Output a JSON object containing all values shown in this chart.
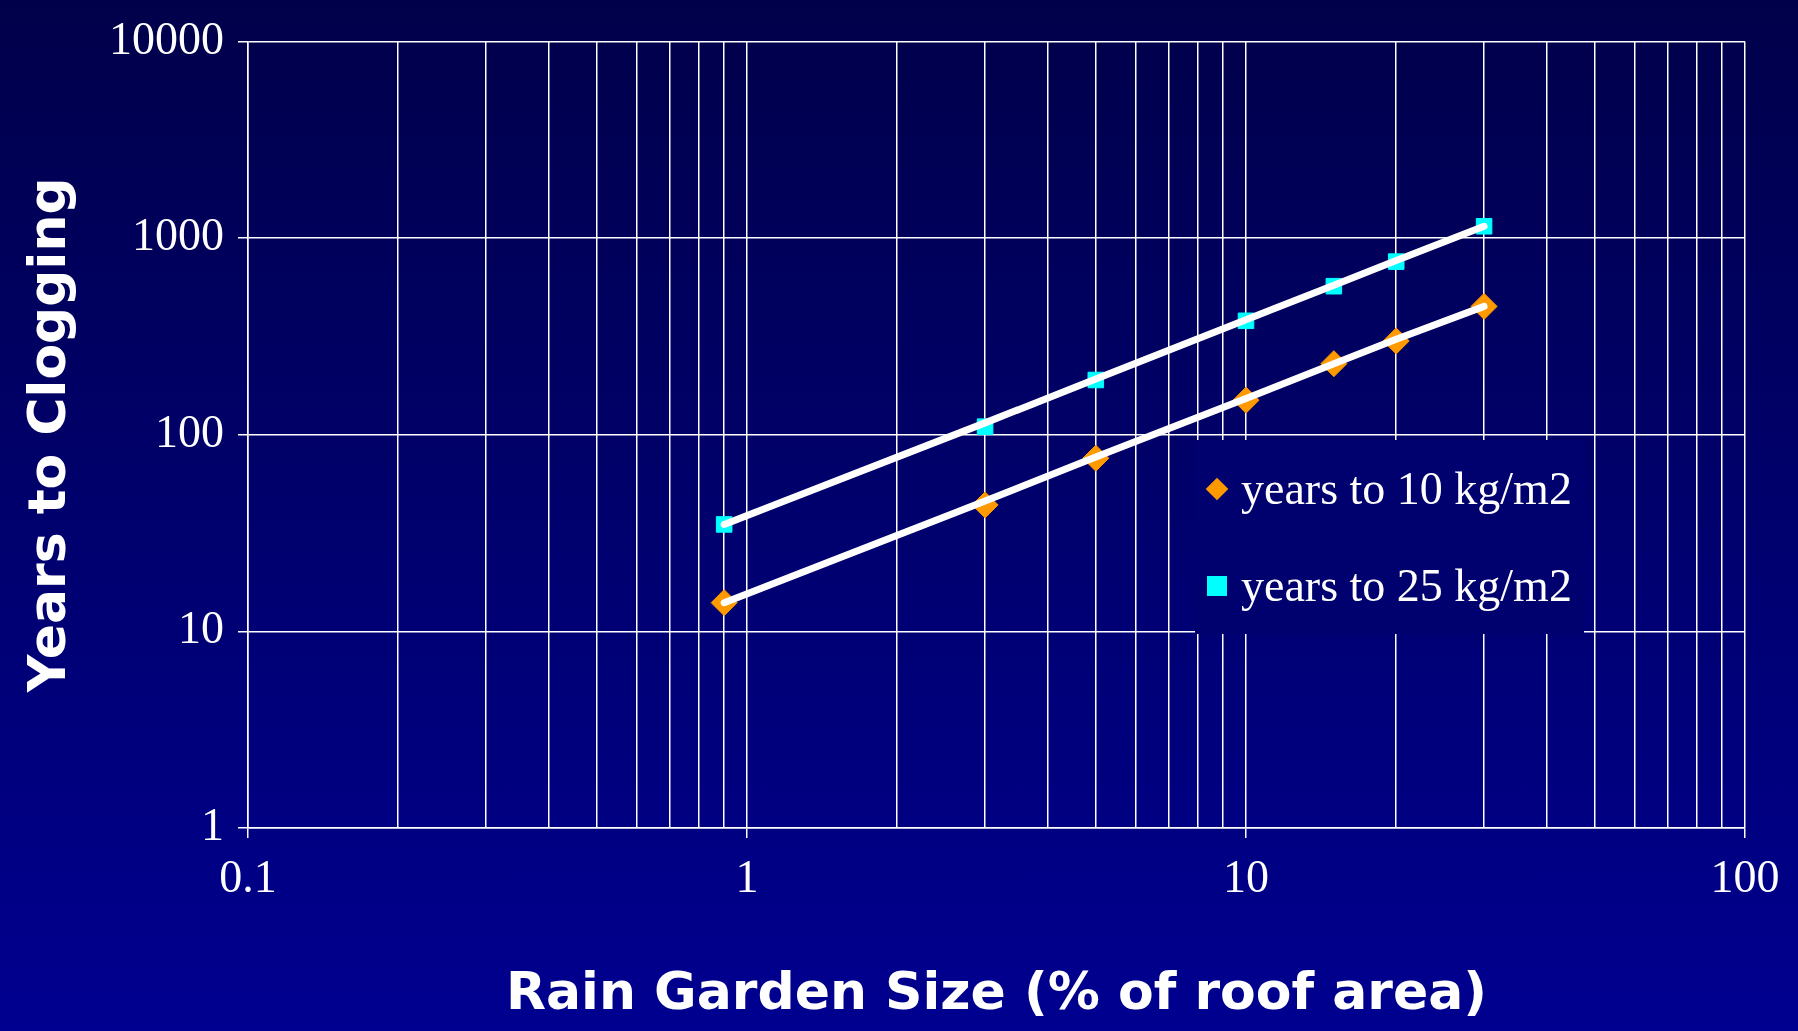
{
  "chart_data": {
    "type": "scatter",
    "xlabel": "Rain Garden Size (% of roof area)",
    "ylabel": "Years to Clogging",
    "x": [
      0.9,
      3,
      5,
      10,
      15,
      20,
      30
    ],
    "series": [
      {
        "name": "years to 10 kg/m2",
        "color": "#ff9900",
        "marker": "diamond",
        "values": [
          14,
          44,
          76,
          150,
          230,
          300,
          450
        ]
      },
      {
        "name": "years to 25 kg/m2",
        "color": "#00ffff",
        "marker": "square",
        "values": [
          35,
          110,
          190,
          380,
          570,
          760,
          1150
        ]
      },
      {
        "type": "line",
        "color": "#ffffff",
        "marker": "none",
        "values": [
          14,
          46,
          77,
          153,
          230,
          306,
          450
        ]
      },
      {
        "type": "line",
        "color": "#ffffff",
        "marker": "none",
        "values": [
          35,
          115,
          192,
          385,
          577,
          770,
          1150
        ]
      }
    ],
    "log": "xy",
    "xlim": [
      0.1,
      100
    ],
    "ylim": [
      1,
      10000
    ],
    "xticks": [
      0.1,
      {
        "value": 0.2,
        "label": null
      },
      {
        "value": 0.3,
        "label": null
      },
      {
        "value": 0.4,
        "label": null
      },
      {
        "value": 0.5,
        "label": null
      },
      {
        "value": 0.6,
        "label": null
      },
      {
        "value": 0.7,
        "label": null
      },
      {
        "value": 0.8,
        "label": null
      },
      {
        "value": 0.9,
        "label": null
      },
      1,
      {
        "value": 2,
        "label": null
      },
      {
        "value": 3,
        "label": null
      },
      {
        "value": 4,
        "label": null
      },
      {
        "value": 5,
        "label": null
      },
      {
        "value": 6,
        "label": null
      },
      {
        "value": 7,
        "label": null
      },
      {
        "value": 8,
        "label": null
      },
      {
        "value": 9,
        "label": null
      },
      10,
      {
        "value": 20,
        "label": null
      },
      {
        "value": 30,
        "label": null
      },
      {
        "value": 40,
        "label": null
      },
      {
        "value": 50,
        "label": null
      },
      {
        "value": 60,
        "label": null
      },
      {
        "value": 70,
        "label": null
      },
      {
        "value": 80,
        "label": null
      },
      {
        "value": 90,
        "label": null
      },
      100
    ],
    "yticks": [
      1,
      10,
      100,
      1000,
      10000
    ],
    "grid": true,
    "legend": "right"
  }
}
